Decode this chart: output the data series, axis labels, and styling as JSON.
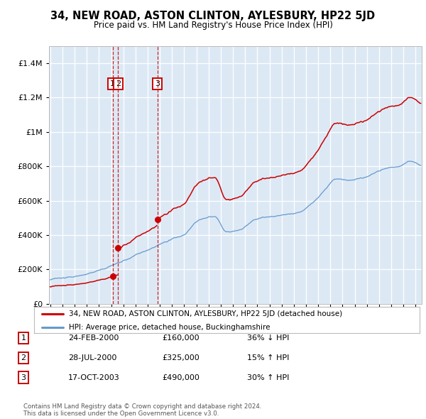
{
  "title": "34, NEW ROAD, ASTON CLINTON, AYLESBURY, HP22 5JD",
  "subtitle": "Price paid vs. HM Land Registry's House Price Index (HPI)",
  "legend_label_red": "34, NEW ROAD, ASTON CLINTON, AYLESBURY, HP22 5JD (detached house)",
  "legend_label_blue": "HPI: Average price, detached house, Buckinghamshire",
  "transactions": [
    {
      "num": 1,
      "date": "24-FEB-2000",
      "year": 2000.13,
      "price": 160000,
      "pct": "36%",
      "dir": "↓"
    },
    {
      "num": 2,
      "date": "28-JUL-2000",
      "year": 2000.57,
      "price": 325000,
      "pct": "15%",
      "dir": "↑"
    },
    {
      "num": 3,
      "date": "17-OCT-2003",
      "year": 2003.79,
      "price": 490000,
      "pct": "30%",
      "dir": "↑"
    }
  ],
  "footer_line1": "Contains HM Land Registry data © Crown copyright and database right 2024.",
  "footer_line2": "This data is licensed under the Open Government Licence v3.0.",
  "bg_color": "#dce9f5",
  "red_line_color": "#cc0000",
  "blue_line_color": "#6699cc",
  "dashed_line_color": "#cc0000",
  "grid_color": "#ffffff",
  "yticks": [
    0,
    200000,
    400000,
    600000,
    800000,
    1000000,
    1200000,
    1400000
  ],
  "ylim_max": 1500000,
  "xlim_start": 1994.9,
  "xlim_end": 2025.5
}
